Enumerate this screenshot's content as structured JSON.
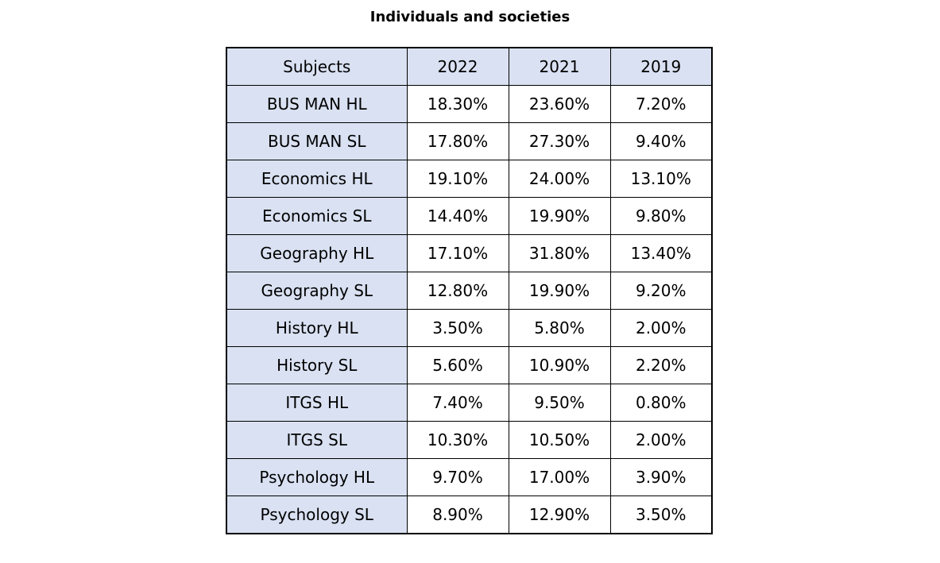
{
  "chart_data": {
    "type": "table",
    "title": "Individuals and societies",
    "columns": [
      "Subjects",
      "2022",
      "2021",
      "2019"
    ],
    "rows": [
      {
        "subject": "BUS MAN HL",
        "values": [
          "18.30%",
          "23.60%",
          "7.20%"
        ]
      },
      {
        "subject": "BUS MAN SL",
        "values": [
          "17.80%",
          "27.30%",
          "9.40%"
        ]
      },
      {
        "subject": "Economics HL",
        "values": [
          "19.10%",
          "24.00%",
          "13.10%"
        ]
      },
      {
        "subject": "Economics SL",
        "values": [
          "14.40%",
          "19.90%",
          "9.80%"
        ]
      },
      {
        "subject": "Geography HL",
        "values": [
          "17.10%",
          "31.80%",
          "13.40%"
        ]
      },
      {
        "subject": "Geography SL",
        "values": [
          "12.80%",
          "19.90%",
          "9.20%"
        ]
      },
      {
        "subject": "History HL",
        "values": [
          "3.50%",
          "5.80%",
          "2.00%"
        ]
      },
      {
        "subject": "History SL",
        "values": [
          "5.60%",
          "10.90%",
          "2.20%"
        ]
      },
      {
        "subject": "ITGS HL",
        "values": [
          "7.40%",
          "9.50%",
          "0.80%"
        ]
      },
      {
        "subject": "ITGS SL",
        "values": [
          "10.30%",
          "10.50%",
          "2.00%"
        ]
      },
      {
        "subject": "Psychology HL",
        "values": [
          "9.70%",
          "17.00%",
          "3.90%"
        ]
      },
      {
        "subject": "Psychology SL",
        "values": [
          "8.90%",
          "12.90%",
          "3.50%"
        ]
      }
    ],
    "colors": {
      "header_fill": "#d9e1f2",
      "cell_fill": "#ffffff",
      "border": "#000000"
    }
  }
}
